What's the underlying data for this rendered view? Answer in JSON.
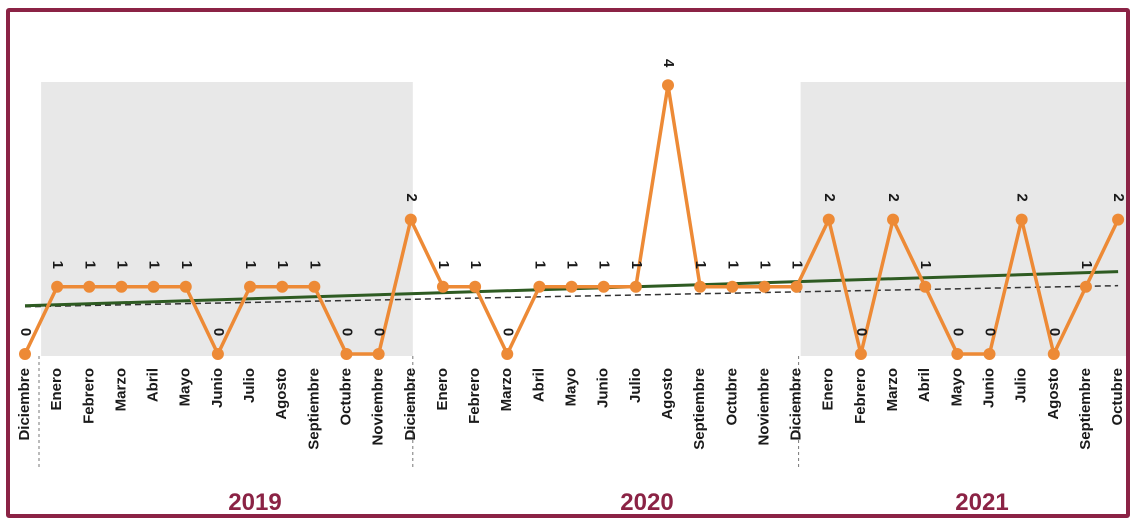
{
  "chart_data": {
    "type": "line",
    "categories": [
      "Diciembre",
      "Enero",
      "Febrero",
      "Marzo",
      "Abril",
      "Mayo",
      "Junio",
      "Julio",
      "Agosto",
      "Septiembre",
      "Octubre",
      "Noviembre",
      "Diciembre",
      "Enero",
      "Febrero",
      "Marzo",
      "Abril",
      "Mayo",
      "Junio",
      "Julio",
      "Agosto",
      "Septiembre",
      "Octubre",
      "Noviembre",
      "Diciembre",
      "Enero",
      "Febrero",
      "Marzo",
      "Abril",
      "Mayo",
      "Junio",
      "Julio",
      "Agosto",
      "Septiembre",
      "Octubre"
    ],
    "values": [
      0,
      1,
      1,
      1,
      1,
      1,
      0,
      1,
      1,
      1,
      0,
      0,
      2,
      1,
      1,
      0,
      1,
      1,
      1,
      1,
      4,
      1,
      1,
      1,
      1,
      2,
      0,
      2,
      1,
      0,
      0,
      2,
      0,
      1,
      2
    ],
    "year_groups": [
      {
        "label": "2019",
        "start": 0,
        "end": 12,
        "shaded": true
      },
      {
        "label": "2020",
        "start": 12,
        "end": 24,
        "shaded": false
      },
      {
        "label": "2021",
        "start": 24,
        "end": 34,
        "shaded": true
      }
    ],
    "ylim": [
      0,
      4
    ],
    "grid": false,
    "colors": {
      "series": "#ED8A36",
      "trend_solid": "#2E5B22",
      "trend_dashed": "#333333",
      "shade": "#E8E8E8",
      "frame": "#8B2345"
    }
  }
}
